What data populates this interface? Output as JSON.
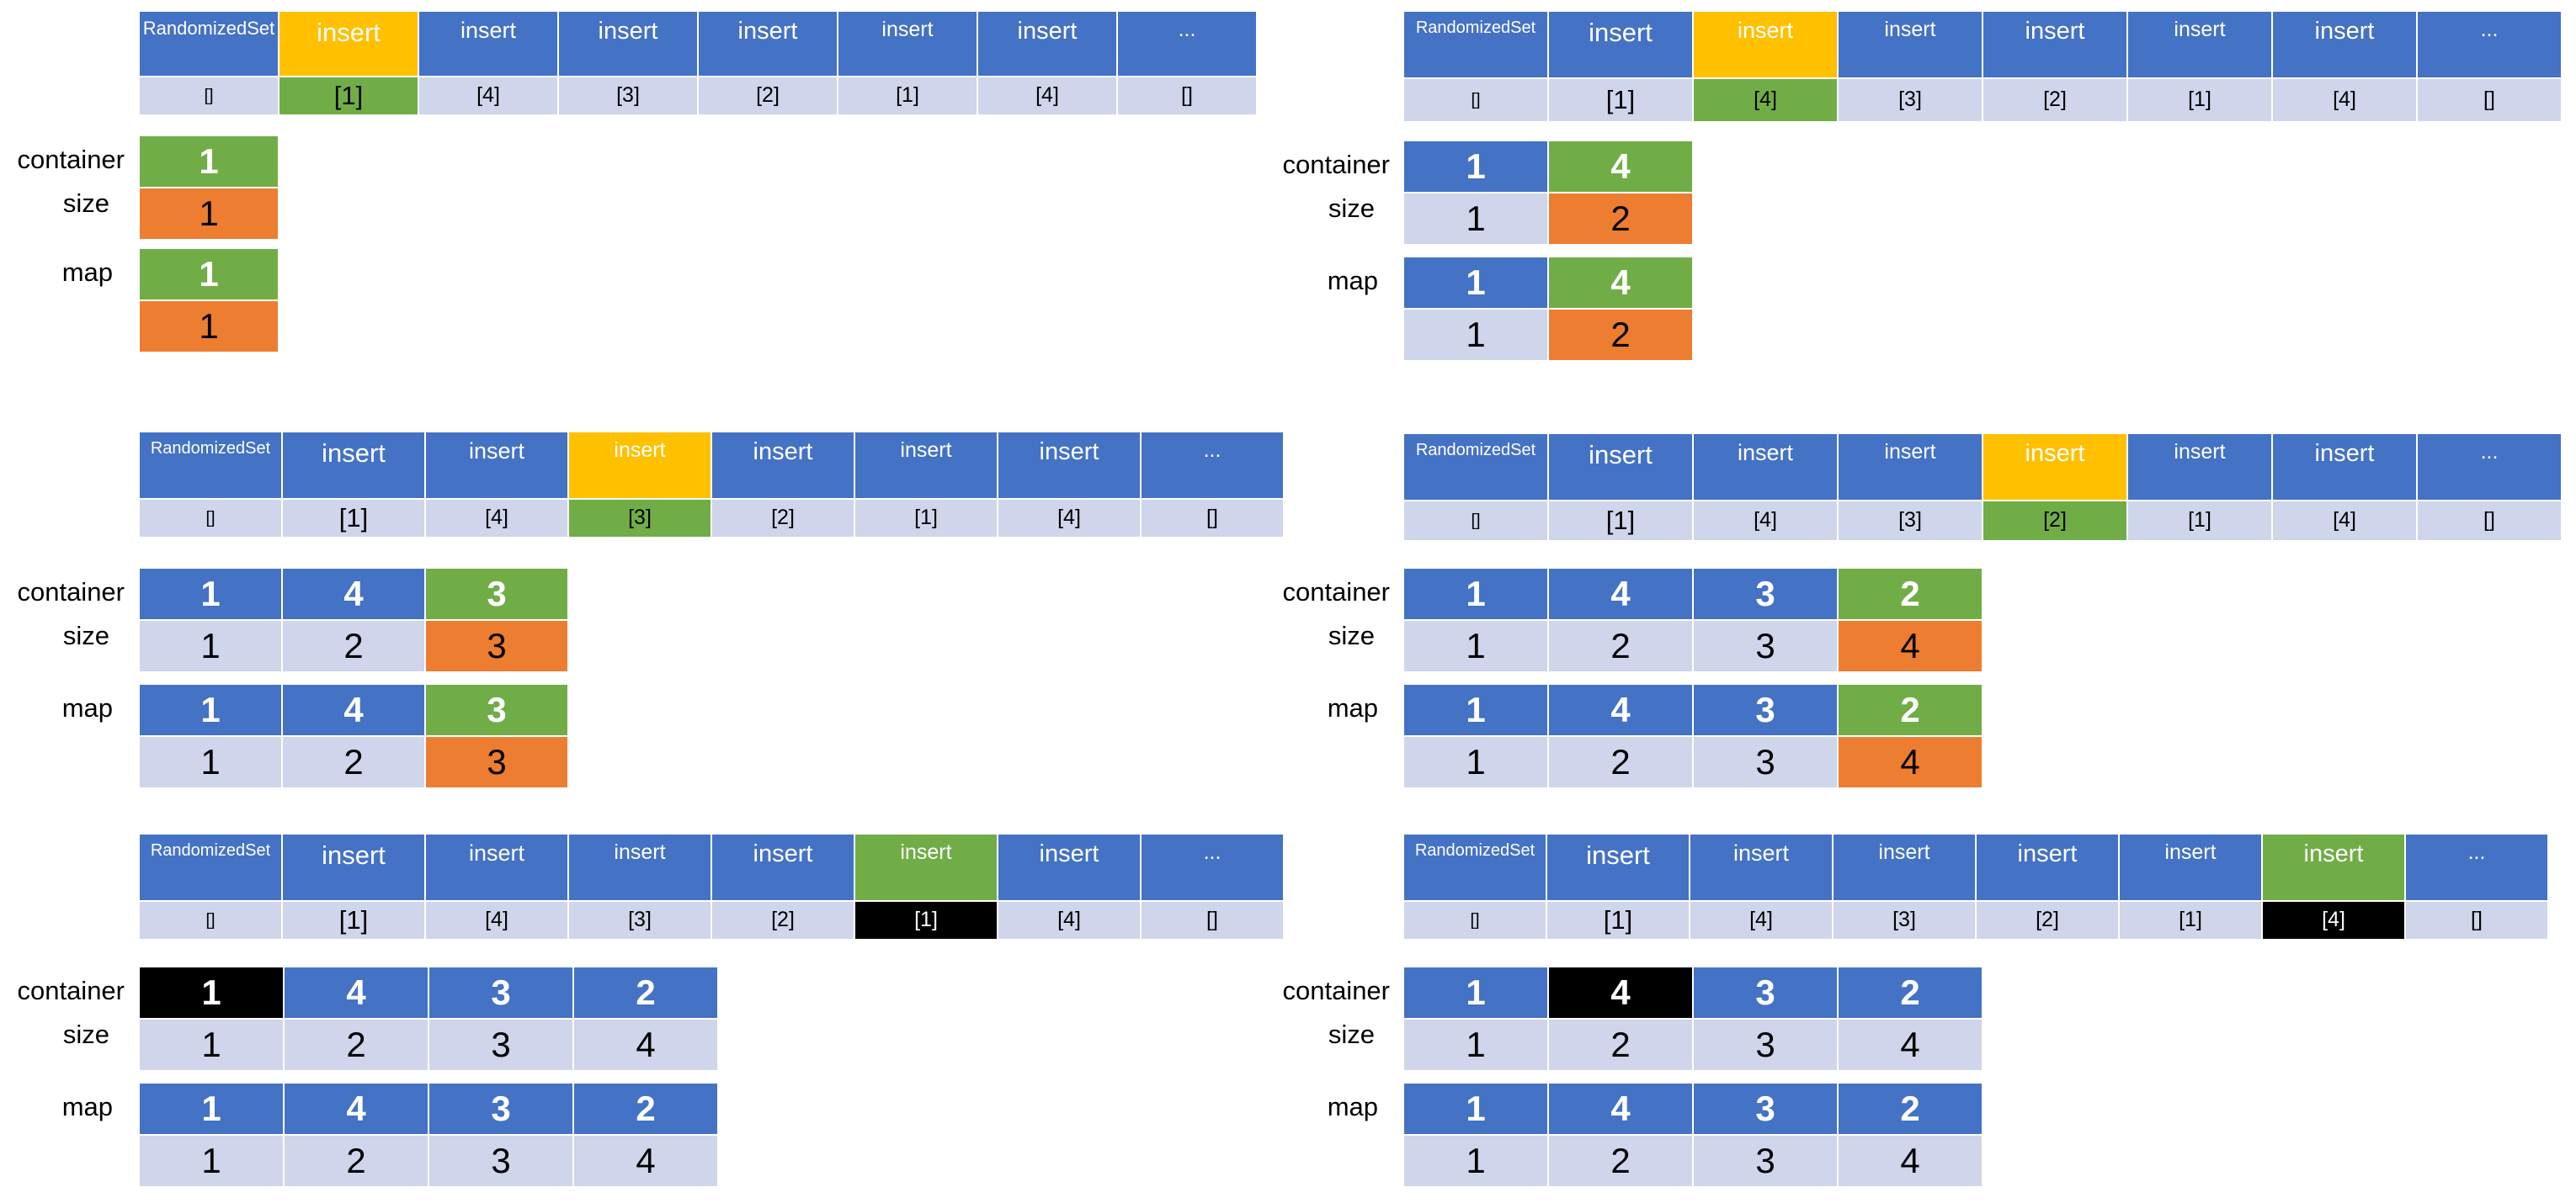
{
  "colors": {
    "blue": "#4472C4",
    "light_blue": "#CFD5EA",
    "yellow": "#FFC000",
    "green": "#70AD47",
    "orange": "#ED7D31",
    "black": "#000000"
  },
  "panels": [
    {
      "ops": [
        "RandomizedSet",
        "insert",
        "insert",
        "insert",
        "insert",
        "insert",
        "insert",
        "..."
      ],
      "args": [
        "[]",
        "[1]",
        "[4]",
        "[3]",
        "[2]",
        "[1]",
        "[4]",
        "[]"
      ],
      "op_hl": [
        1,
        "yellow"
      ],
      "arg_hl": [
        1,
        "green"
      ],
      "labels": {
        "container": "container",
        "size": "size",
        "map": "map"
      },
      "container_vals": [
        "1"
      ],
      "size_vals": [
        "1"
      ],
      "map_keys": [
        "1"
      ],
      "map_vals": [
        "1"
      ],
      "container_hl": [
        0,
        "green"
      ],
      "size_hl": [
        0,
        "orange"
      ],
      "map_key_hl": [
        0,
        "green"
      ],
      "map_val_hl": [
        0,
        "orange"
      ]
    },
    {
      "ops": [
        "RandomizedSet",
        "insert",
        "insert",
        "insert",
        "insert",
        "insert",
        "insert",
        "..."
      ],
      "args": [
        "[]",
        "[1]",
        "[4]",
        "[3]",
        "[2]",
        "[1]",
        "[4]",
        "[]"
      ],
      "op_hl": [
        2,
        "yellow"
      ],
      "arg_hl": [
        2,
        "green"
      ],
      "labels": {
        "container": "container",
        "size": "size",
        "map": "map"
      },
      "container_vals": [
        "1",
        "4"
      ],
      "size_vals": [
        "1",
        "2"
      ],
      "map_keys": [
        "1",
        "4"
      ],
      "map_vals": [
        "1",
        "2"
      ],
      "container_hl": [
        1,
        "green"
      ],
      "size_hl": [
        1,
        "orange"
      ],
      "map_key_hl": [
        1,
        "green"
      ],
      "map_val_hl": [
        1,
        "orange"
      ]
    },
    {
      "ops": [
        "RandomizedSet",
        "insert",
        "insert",
        "insert",
        "insert",
        "insert",
        "insert",
        "..."
      ],
      "args": [
        "[]",
        "[1]",
        "[4]",
        "[3]",
        "[2]",
        "[1]",
        "[4]",
        "[]"
      ],
      "op_hl": [
        3,
        "yellow"
      ],
      "arg_hl": [
        3,
        "green"
      ],
      "labels": {
        "container": "container",
        "size": "size",
        "map": "map"
      },
      "container_vals": [
        "1",
        "4",
        "3"
      ],
      "size_vals": [
        "1",
        "2",
        "3"
      ],
      "map_keys": [
        "1",
        "4",
        "3"
      ],
      "map_vals": [
        "1",
        "2",
        "3"
      ],
      "container_hl": [
        2,
        "green"
      ],
      "size_hl": [
        2,
        "orange"
      ],
      "map_key_hl": [
        2,
        "green"
      ],
      "map_val_hl": [
        2,
        "orange"
      ]
    },
    {
      "ops": [
        "RandomizedSet",
        "insert",
        "insert",
        "insert",
        "insert",
        "insert",
        "insert",
        "..."
      ],
      "args": [
        "[]",
        "[1]",
        "[4]",
        "[3]",
        "[2]",
        "[1]",
        "[4]",
        "[]"
      ],
      "op_hl": [
        4,
        "yellow"
      ],
      "arg_hl": [
        4,
        "green"
      ],
      "labels": {
        "container": "container",
        "size": "size",
        "map": "map"
      },
      "container_vals": [
        "1",
        "4",
        "3",
        "2"
      ],
      "size_vals": [
        "1",
        "2",
        "3",
        "4"
      ],
      "map_keys": [
        "1",
        "4",
        "3",
        "2"
      ],
      "map_vals": [
        "1",
        "2",
        "3",
        "4"
      ],
      "container_hl": [
        3,
        "green"
      ],
      "size_hl": [
        3,
        "orange"
      ],
      "map_key_hl": [
        3,
        "green"
      ],
      "map_val_hl": [
        3,
        "orange"
      ]
    },
    {
      "ops": [
        "RandomizedSet",
        "insert",
        "insert",
        "insert",
        "insert",
        "insert",
        "insert",
        "..."
      ],
      "args": [
        "[]",
        "[1]",
        "[4]",
        "[3]",
        "[2]",
        "[1]",
        "[4]",
        "[]"
      ],
      "op_hl": [
        5,
        "green"
      ],
      "arg_hl": [
        5,
        "black"
      ],
      "labels": {
        "container": "container",
        "size": "size",
        "map": "map"
      },
      "container_vals": [
        "1",
        "4",
        "3",
        "2"
      ],
      "size_vals": [
        "1",
        "2",
        "3",
        "4"
      ],
      "map_keys": [
        "1",
        "4",
        "3",
        "2"
      ],
      "map_vals": [
        "1",
        "2",
        "3",
        "4"
      ],
      "container_hl": [
        0,
        "black"
      ],
      "size_hl": [
        -1,
        ""
      ],
      "map_key_hl": [
        -1,
        ""
      ],
      "map_val_hl": [
        -1,
        ""
      ]
    },
    {
      "ops": [
        "RandomizedSet",
        "insert",
        "insert",
        "insert",
        "insert",
        "insert",
        "insert",
        "..."
      ],
      "args": [
        "[]",
        "[1]",
        "[4]",
        "[3]",
        "[2]",
        "[1]",
        "[4]",
        "[]"
      ],
      "op_hl": [
        6,
        "green"
      ],
      "arg_hl": [
        6,
        "black"
      ],
      "labels": {
        "container": "container",
        "size": "size",
        "map": "map"
      },
      "container_vals": [
        "1",
        "4",
        "3",
        "2"
      ],
      "size_vals": [
        "1",
        "2",
        "3",
        "4"
      ],
      "map_keys": [
        "1",
        "4",
        "3",
        "2"
      ],
      "map_vals": [
        "1",
        "2",
        "3",
        "4"
      ],
      "container_hl": [
        1,
        "black"
      ],
      "size_hl": [
        -1,
        ""
      ],
      "map_key_hl": [
        -1,
        ""
      ],
      "map_val_hl": [
        -1,
        ""
      ]
    }
  ]
}
